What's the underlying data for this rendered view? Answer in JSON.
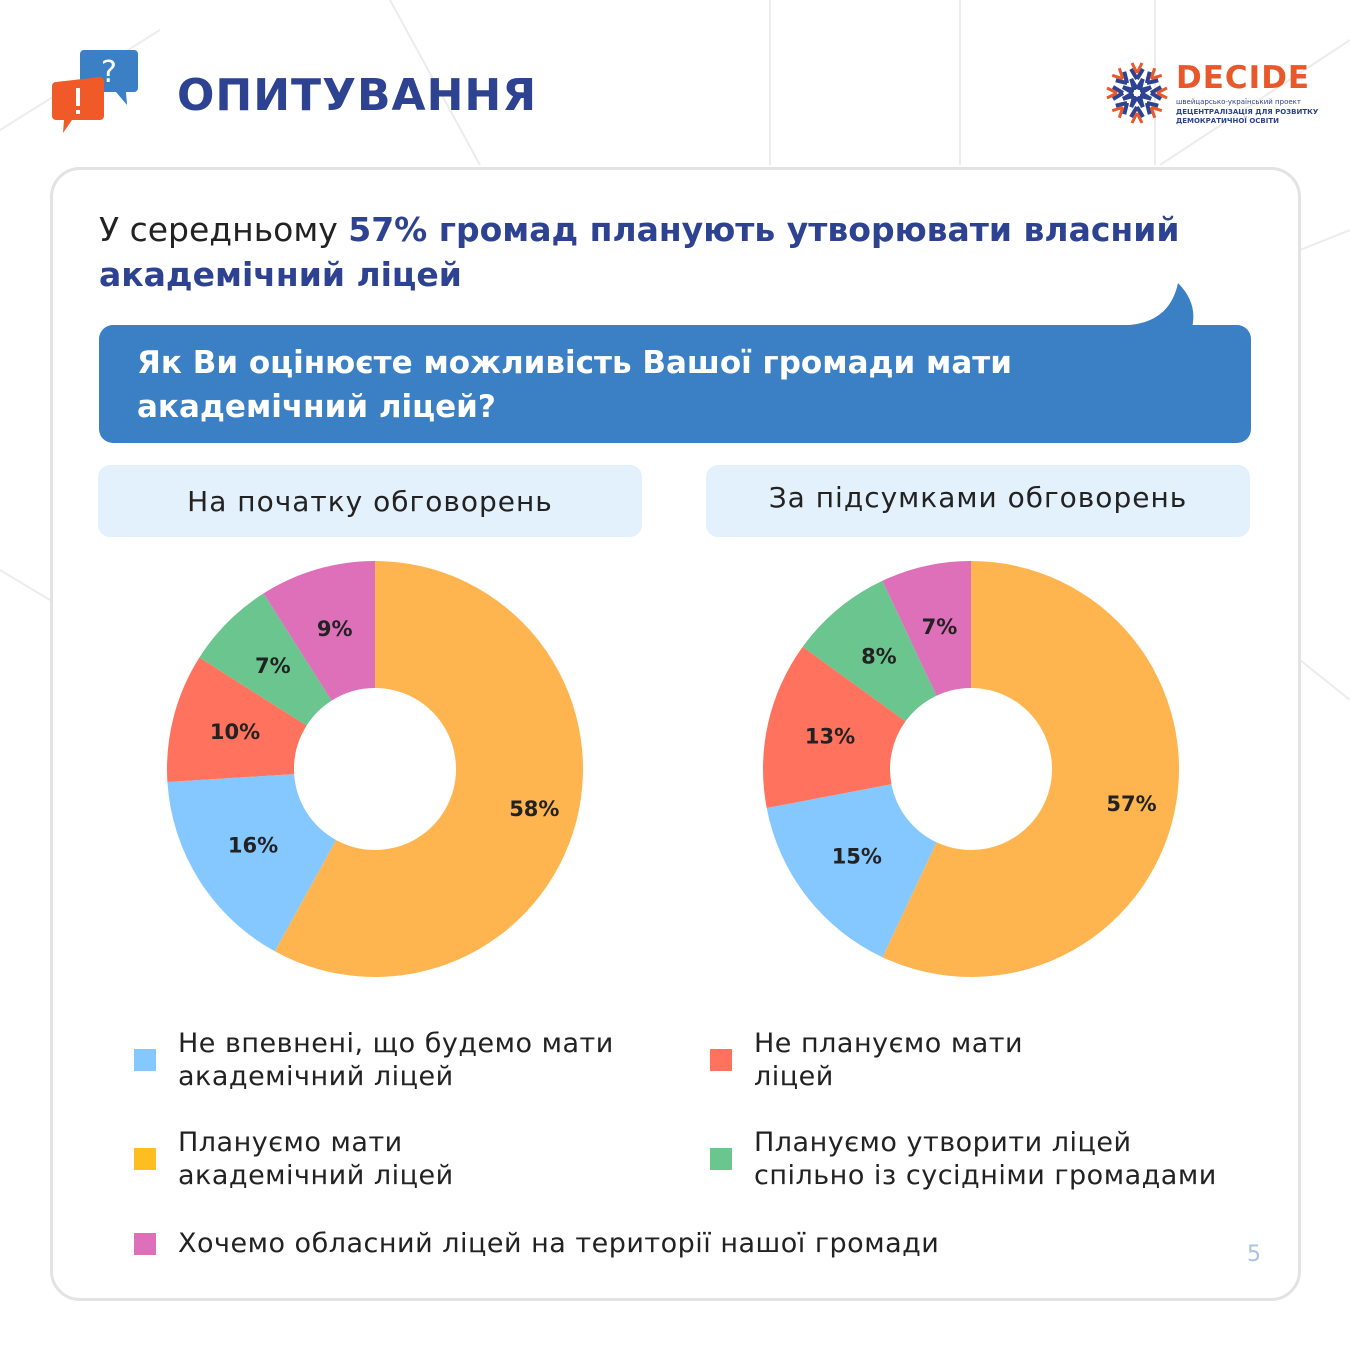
{
  "header": {
    "title": "ОПИТУВАННЯ",
    "icon": "speech-bubbles-question-exclamation-icon"
  },
  "logo": {
    "name": "DECIDE",
    "line1": "швейцарсько-український проект",
    "line2": "ДЕЦЕНТРАЛІЗАЦІЯ ДЛЯ РОЗВИТКУ",
    "line3": "ДЕМОКРАТИЧНОЇ ОСВІТИ"
  },
  "headline": {
    "prefix": "У середньому ",
    "highlight": "57% громад планують утворювати власний академічний ліцей"
  },
  "question": "Як Ви оцінюєте можливість Вашої громади мати академічний ліцей?",
  "page_number": "5",
  "chart_data": [
    {
      "type": "pie",
      "title": "На початку обговорень",
      "categories": [
        "Планує мати академічний ліцей",
        "Не впевнені",
        "Не плануємо",
        "Спільно з сусідніми",
        "Обласний ліцей"
      ],
      "values": [
        58,
        16,
        10,
        7,
        9
      ],
      "labels": [
        "58%",
        "16%",
        "10%",
        "7%",
        "9%"
      ],
      "colors": [
        "#FFB54F",
        "#85C8FF",
        "#FF725E",
        "#6BC58F",
        "#DE6FB9"
      ]
    },
    {
      "type": "pie",
      "title": "За підсумками обговорень",
      "categories": [
        "Планує мати академічний ліцей",
        "Не впевнені",
        "Не плануємо",
        "Спільно з сусідніми",
        "Обласний ліцей"
      ],
      "values": [
        57,
        15,
        13,
        8,
        7
      ],
      "labels": [
        "57%",
        "15%",
        "13%",
        "8%",
        "7%"
      ],
      "colors": [
        "#FFB54F",
        "#85C8FF",
        "#FF725E",
        "#6BC58F",
        "#DE6FB9"
      ]
    }
  ],
  "legend": [
    {
      "label": "Не впевнені, що будемо мати академічний ліцей",
      "color": "#85C8FF"
    },
    {
      "label": "Не плануємо мати ліцей",
      "color": "#FF725E"
    },
    {
      "label": "Плануємо мати академічний ліцей",
      "color": "#FDBE1F"
    },
    {
      "label": "Плануємо утворити ліцей спільно із сусідніми громадами",
      "color": "#6BC58F"
    },
    {
      "label": "Хочемо обласний ліцей на території нашої громади",
      "color": "#DE6FB9"
    }
  ]
}
